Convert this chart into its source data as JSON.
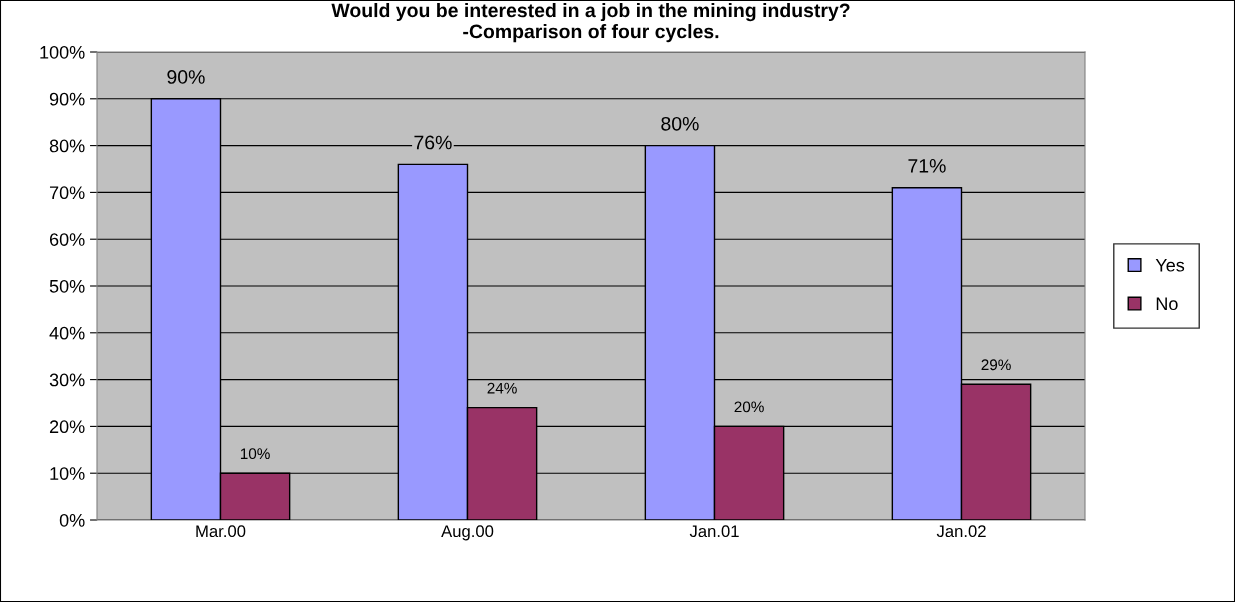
{
  "chart_data": {
    "type": "bar",
    "title": "Would you be interested in a job in the mining industry?\n-Comparison of four cycles.",
    "categories": [
      "Mar.00",
      "Aug.00",
      "Jan.01",
      "Jan.02"
    ],
    "series": [
      {
        "name": "Yes",
        "color": "#9999ff",
        "values": [
          90,
          76,
          80,
          71
        ],
        "value_labels": [
          "90%",
          "76%",
          "80%",
          "71%"
        ]
      },
      {
        "name": "No",
        "color": "#993366",
        "values": [
          10,
          24,
          20,
          29
        ],
        "value_labels": [
          "10%",
          "24%",
          "20%",
          "29%"
        ]
      }
    ],
    "ylim": [
      0,
      100
    ],
    "yticks": [
      {
        "value": 0,
        "label": "0%"
      },
      {
        "value": 10,
        "label": "10%"
      },
      {
        "value": 20,
        "label": "20%"
      },
      {
        "value": 30,
        "label": "30%"
      },
      {
        "value": 40,
        "label": "40%"
      },
      {
        "value": 50,
        "label": "50%"
      },
      {
        "value": 60,
        "label": "60%"
      },
      {
        "value": 70,
        "label": "70%"
      },
      {
        "value": 80,
        "label": "80%"
      },
      {
        "value": 90,
        "label": "90%"
      },
      {
        "value": 100,
        "label": "100%"
      }
    ],
    "grid": "y",
    "legend": "right"
  }
}
